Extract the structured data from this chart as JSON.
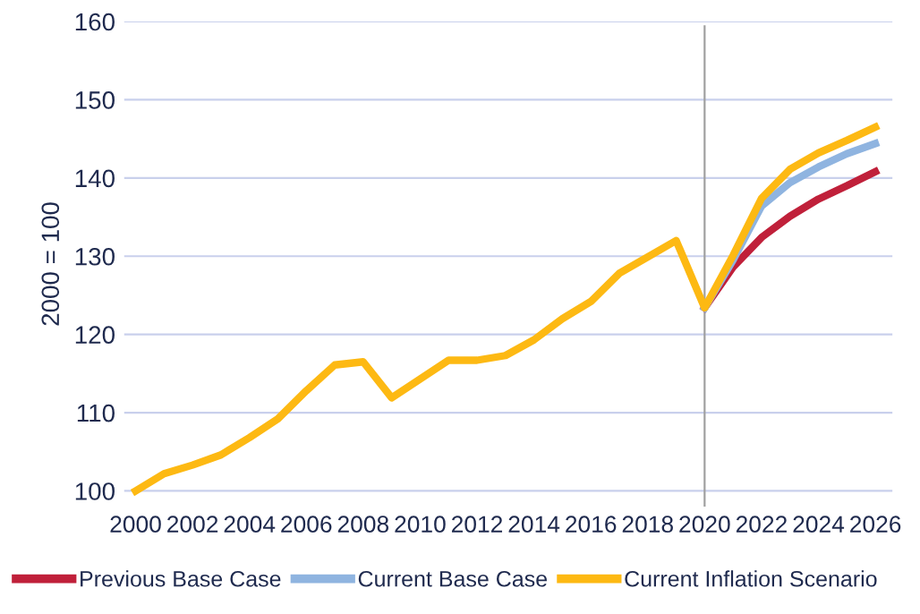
{
  "chart_data": {
    "type": "line",
    "ylabel": "2000 = 100",
    "x": [
      2000,
      2001,
      2002,
      2003,
      2004,
      2005,
      2006,
      2007,
      2008,
      2009,
      2010,
      2011,
      2012,
      2013,
      2014,
      2015,
      2016,
      2017,
      2018,
      2019,
      2020,
      2021,
      2022,
      2023,
      2024,
      2025,
      2026
    ],
    "series": [
      {
        "name": "Previous Base Case",
        "color": "#c0203a",
        "x": [
          2020,
          2021,
          2022,
          2023,
          2024,
          2025,
          2026
        ],
        "values": [
          123.4,
          128.6,
          132.4,
          135.1,
          137.3,
          139.0,
          140.8
        ]
      },
      {
        "name": "Current Base Case",
        "color": "#8fb4e0",
        "x": [
          2020,
          2021,
          2022,
          2023,
          2024,
          2025,
          2026
        ],
        "values": [
          123.4,
          129.5,
          136.4,
          139.4,
          141.4,
          143.1,
          144.4
        ]
      },
      {
        "name": "Current Inflation Scenario",
        "color": "#fdb913",
        "values": [
          100,
          102.2,
          103.3,
          104.6,
          106.8,
          109.2,
          112.8,
          116.1,
          116.5,
          111.9,
          114.3,
          116.7,
          116.7,
          117.3,
          119.3,
          122.0,
          124.2,
          127.8,
          129.9,
          132.0,
          123.4,
          130.1,
          137.4,
          141.1,
          143.2,
          144.8,
          146.5
        ]
      }
    ],
    "xlim": [
      1999.6,
      2026.6
    ],
    "xticks": [
      2000,
      2002,
      2004,
      2006,
      2008,
      2010,
      2012,
      2014,
      2016,
      2018,
      2020,
      2022,
      2024,
      2026
    ],
    "ylim": [
      98,
      160
    ],
    "yticks": [
      100,
      110,
      120,
      130,
      140,
      150,
      160
    ],
    "ref_lines": [
      {
        "axis": "x",
        "value": 2020,
        "color": "#a0a0a0"
      }
    ],
    "grid": "y",
    "legend": "bottom",
    "marker": "none",
    "line_style": "solid"
  }
}
